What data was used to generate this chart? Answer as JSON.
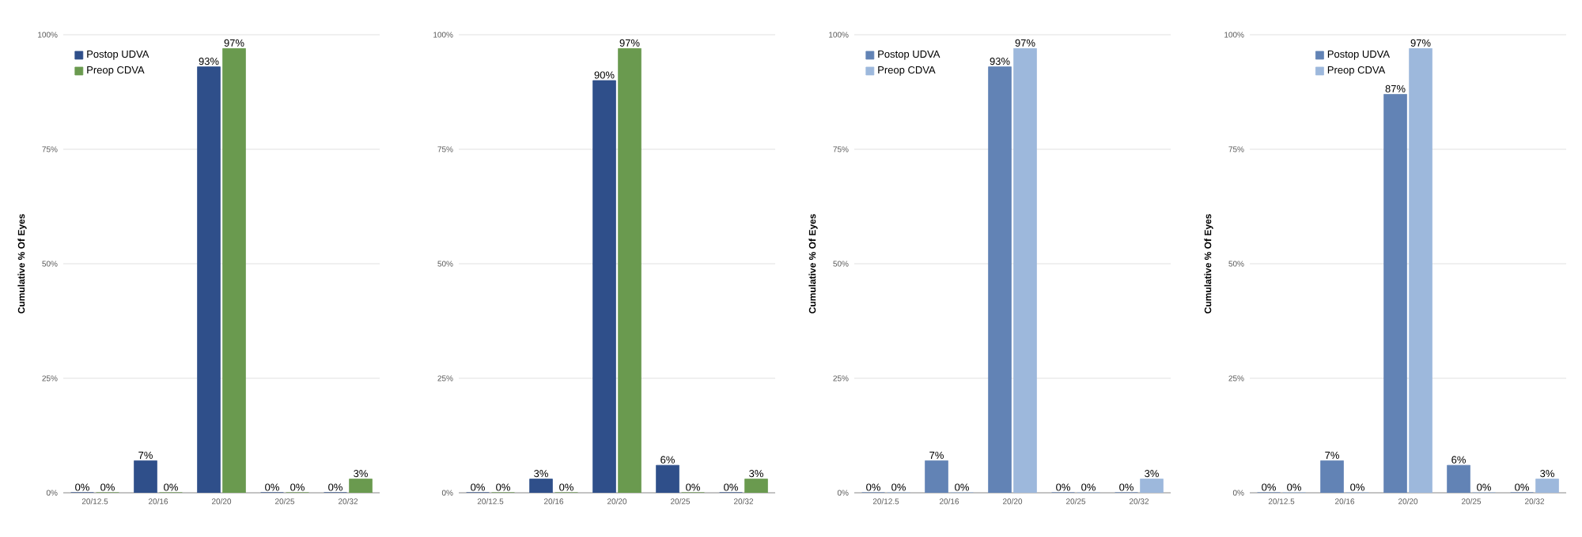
{
  "chart_data": [
    {
      "type": "bar",
      "ylabel": "Cumulative % Of Eyes",
      "categories": [
        "20/12.5",
        "20/16",
        "20/20",
        "20/25",
        "20/32"
      ],
      "series": [
        {
          "name": "Postop UDVA",
          "color": "#2f4f8a",
          "values": [
            0,
            7,
            93,
            0,
            0
          ],
          "value_labels": [
            "0%",
            "7%",
            "93%",
            "0%",
            "0%"
          ]
        },
        {
          "name": "Preop CDVA",
          "color": "#6a9a4f",
          "values": [
            0,
            0,
            97,
            0,
            3
          ],
          "value_labels": [
            "0%",
            "0%",
            "97%",
            "0%",
            "3%"
          ]
        }
      ],
      "ylim": [
        0,
        100
      ],
      "yticks": [
        {
          "value": 0,
          "label": "0%"
        },
        {
          "value": 25,
          "label": "25%"
        },
        {
          "value": 50,
          "label": "50%"
        },
        {
          "value": 75,
          "label": "75%"
        },
        {
          "value": 100,
          "label": "100%"
        }
      ],
      "grid": "y",
      "legend": "top left"
    },
    {
      "type": "bar",
      "categories": [
        "20/12.5",
        "20/16",
        "20/20",
        "20/25",
        "20/32"
      ],
      "series": [
        {
          "color": "#2f4f8a",
          "values": [
            0,
            3,
            90,
            6,
            0
          ],
          "value_labels": [
            "0%",
            "3%",
            "90%",
            "6%",
            "0%"
          ]
        },
        {
          "color": "#6a9a4f",
          "values": [
            0,
            0,
            97,
            0,
            3
          ],
          "value_labels": [
            "0%",
            "0%",
            "97%",
            "0%",
            "3%"
          ]
        }
      ],
      "ylim": [
        0,
        100
      ],
      "yticks": [
        {
          "value": 0,
          "label": "0%"
        },
        {
          "value": 25,
          "label": "25%"
        },
        {
          "value": 50,
          "label": "50%"
        },
        {
          "value": 75,
          "label": "75%"
        },
        {
          "value": 100,
          "label": "100%"
        }
      ],
      "grid": "y"
    },
    {
      "type": "bar",
      "ylabel": "Cumulative % Of Eyes",
      "categories": [
        "20/12.5",
        "20/16",
        "20/20",
        "20/25",
        "20/32"
      ],
      "series": [
        {
          "name": "Postop UDVA",
          "color": "#6283b5",
          "values": [
            0,
            7,
            93,
            0,
            0
          ],
          "value_labels": [
            "0%",
            "7%",
            "93%",
            "0%",
            "0%"
          ]
        },
        {
          "name": "Preop CDVA",
          "color": "#9db8dc",
          "values": [
            0,
            0,
            97,
            0,
            3
          ],
          "value_labels": [
            "0%",
            "0%",
            "97%",
            "0%",
            "3%"
          ]
        }
      ],
      "ylim": [
        0,
        100
      ],
      "yticks": [
        {
          "value": 0,
          "label": "0%"
        },
        {
          "value": 25,
          "label": "25%"
        },
        {
          "value": 50,
          "label": "50%"
        },
        {
          "value": 75,
          "label": "75%"
        },
        {
          "value": 100,
          "label": "100%"
        }
      ],
      "grid": "y",
      "legend": "top left"
    },
    {
      "type": "bar",
      "ylabel": "Cumulative % Of Eyes",
      "categories": [
        "20/12.5",
        "20/16",
        "20/20",
        "20/25",
        "20/32"
      ],
      "series": [
        {
          "name": "Postop UDVA",
          "color": "#6283b5",
          "values": [
            0,
            7,
            87,
            6,
            0
          ],
          "value_labels": [
            "0%",
            "7%",
            "87%",
            "6%",
            "0%"
          ]
        },
        {
          "name": "Preop CDVA",
          "color": "#9db8dc",
          "values": [
            0,
            0,
            97,
            0,
            3
          ],
          "value_labels": [
            "0%",
            "0%",
            "97%",
            "0%",
            "3%"
          ]
        }
      ],
      "ylim": [
        0,
        100
      ],
      "yticks": [
        {
          "value": 0,
          "label": "0%"
        },
        {
          "value": 25,
          "label": "25%"
        },
        {
          "value": 50,
          "label": "50%"
        },
        {
          "value": 75,
          "label": "75%"
        },
        {
          "value": 100,
          "label": "100%"
        }
      ],
      "grid": "y",
      "legend": "top"
    }
  ]
}
